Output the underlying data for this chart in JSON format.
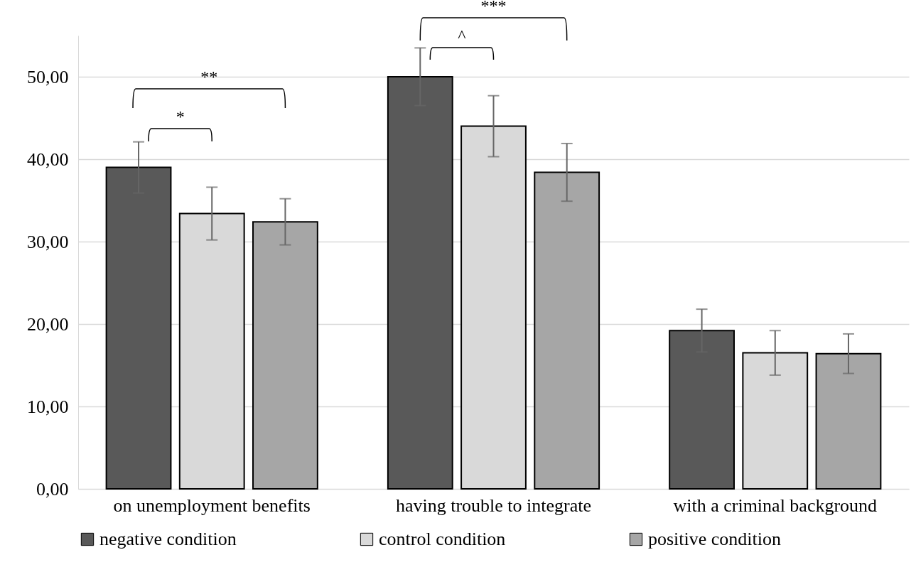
{
  "chart_data": {
    "type": "bar",
    "categories": [
      "on unemployment benefits",
      "having trouble to integrate",
      "with a criminal background"
    ],
    "series": [
      {
        "name": "negative condition",
        "color": "#595959",
        "values": [
          39.0,
          50.0,
          19.2
        ],
        "errors": [
          3.1,
          3.5,
          2.6
        ]
      },
      {
        "name": "control condition",
        "color": "#d9d9d9",
        "values": [
          33.4,
          44.0,
          16.5
        ],
        "errors": [
          3.2,
          3.7,
          2.7
        ]
      },
      {
        "name": "positive condition",
        "color": "#a6a6a6",
        "values": [
          32.4,
          38.4,
          16.4
        ],
        "errors": [
          2.8,
          3.5,
          2.4
        ]
      }
    ],
    "ylim": [
      0,
      55
    ],
    "yticks": [
      {
        "value": 0,
        "label": "0,00"
      },
      {
        "value": 10,
        "label": "10,00"
      },
      {
        "value": 20,
        "label": "20,00"
      },
      {
        "value": 30,
        "label": "30,00"
      },
      {
        "value": 40,
        "label": "40,00"
      },
      {
        "value": 50,
        "label": "50,00"
      }
    ],
    "annotations": [
      "**",
      "*",
      "***",
      "^"
    ],
    "grid": "y",
    "legend": "bottom"
  }
}
